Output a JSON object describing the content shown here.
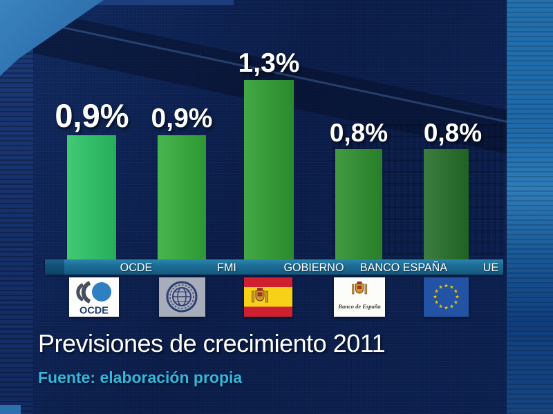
{
  "chart_data": {
    "type": "bar",
    "title": "Previsiones de crecimiento 2011",
    "source": "Fuente: elaboración propia",
    "categories": [
      "OCDE",
      "FMI",
      "GOBIERNO",
      "BANCO ESPAÑA",
      "UE"
    ],
    "values": [
      0.9,
      0.9,
      1.3,
      0.8,
      0.8
    ],
    "value_labels": [
      "0,9%",
      "0,9%",
      "1,3%",
      "0,8%",
      "0,8%"
    ],
    "unit": "%",
    "bar_colors": [
      "#2bc566",
      "#33ad3a",
      "#2f9e31",
      "#2d8f2e",
      "#256f29"
    ],
    "xlabel": "",
    "ylabel": "",
    "ylim": [
      0,
      1.4
    ],
    "grid": false,
    "legend": false
  },
  "logos": [
    {
      "name": "ocde-logo",
      "text": "OCDE"
    },
    {
      "name": "fmi-seal",
      "text": ""
    },
    {
      "name": "spain-flag",
      "text": ""
    },
    {
      "name": "banco-de-espana-logo",
      "text": "Banco de España"
    },
    {
      "name": "eu-flag",
      "text": ""
    }
  ],
  "colors": {
    "background": "#0b1d4a",
    "strip": "#1c6d96",
    "title_text": "#ffffff",
    "source_text": "#35b7db",
    "value_text": "#ffffff"
  }
}
